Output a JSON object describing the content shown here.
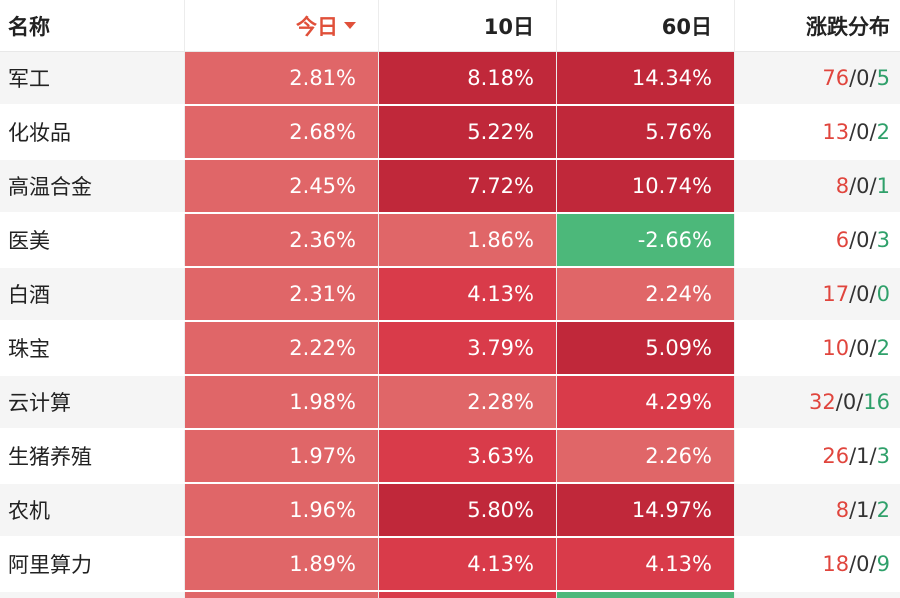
{
  "header": {
    "name": "名称",
    "today": "今日",
    "d10": "10日",
    "d60": "60日",
    "dist": "涨跌分布"
  },
  "colors": {
    "red_strong": "#c0283a",
    "red_mid": "#d93b4a",
    "red_light": "#e06668",
    "green": "#4cb87a",
    "up_text": "#e0453d",
    "down_text": "#2fa06a",
    "sort_accent": "#e0503a"
  },
  "rows": [
    {
      "name": "军工",
      "today": "2.81%",
      "d10": "8.18%",
      "d60": "14.34%",
      "up": "76",
      "flat": "0",
      "down": "5",
      "today_c": "red_light",
      "d10_c": "red_strong",
      "d60_c": "red_strong"
    },
    {
      "name": "化妆品",
      "today": "2.68%",
      "d10": "5.22%",
      "d60": "5.76%",
      "up": "13",
      "flat": "0",
      "down": "2",
      "today_c": "red_light",
      "d10_c": "red_strong",
      "d60_c": "red_strong"
    },
    {
      "name": "高温合金",
      "today": "2.45%",
      "d10": "7.72%",
      "d60": "10.74%",
      "up": "8",
      "flat": "0",
      "down": "1",
      "today_c": "red_light",
      "d10_c": "red_strong",
      "d60_c": "red_strong"
    },
    {
      "name": "医美",
      "today": "2.36%",
      "d10": "1.86%",
      "d60": "-2.66%",
      "up": "6",
      "flat": "0",
      "down": "3",
      "today_c": "red_light",
      "d10_c": "red_light",
      "d60_c": "green"
    },
    {
      "name": "白酒",
      "today": "2.31%",
      "d10": "4.13%",
      "d60": "2.24%",
      "up": "17",
      "flat": "0",
      "down": "0",
      "today_c": "red_light",
      "d10_c": "red_mid",
      "d60_c": "red_light"
    },
    {
      "name": "珠宝",
      "today": "2.22%",
      "d10": "3.79%",
      "d60": "5.09%",
      "up": "10",
      "flat": "0",
      "down": "2",
      "today_c": "red_light",
      "d10_c": "red_mid",
      "d60_c": "red_strong"
    },
    {
      "name": "云计算",
      "today": "1.98%",
      "d10": "2.28%",
      "d60": "4.29%",
      "up": "32",
      "flat": "0",
      "down": "16",
      "today_c": "red_light",
      "d10_c": "red_light",
      "d60_c": "red_mid"
    },
    {
      "name": "生猪养殖",
      "today": "1.97%",
      "d10": "3.63%",
      "d60": "2.26%",
      "up": "26",
      "flat": "1",
      "down": "3",
      "today_c": "red_light",
      "d10_c": "red_mid",
      "d60_c": "red_light"
    },
    {
      "name": "农机",
      "today": "1.96%",
      "d10": "5.80%",
      "d60": "14.97%",
      "up": "8",
      "flat": "1",
      "down": "2",
      "today_c": "red_light",
      "d10_c": "red_strong",
      "d60_c": "red_strong"
    },
    {
      "name": "阿里算力",
      "today": "1.89%",
      "d10": "4.13%",
      "d60": "4.13%",
      "up": "18",
      "flat": "0",
      "down": "9",
      "today_c": "red_light",
      "d10_c": "red_mid",
      "d60_c": "red_mid"
    }
  ]
}
